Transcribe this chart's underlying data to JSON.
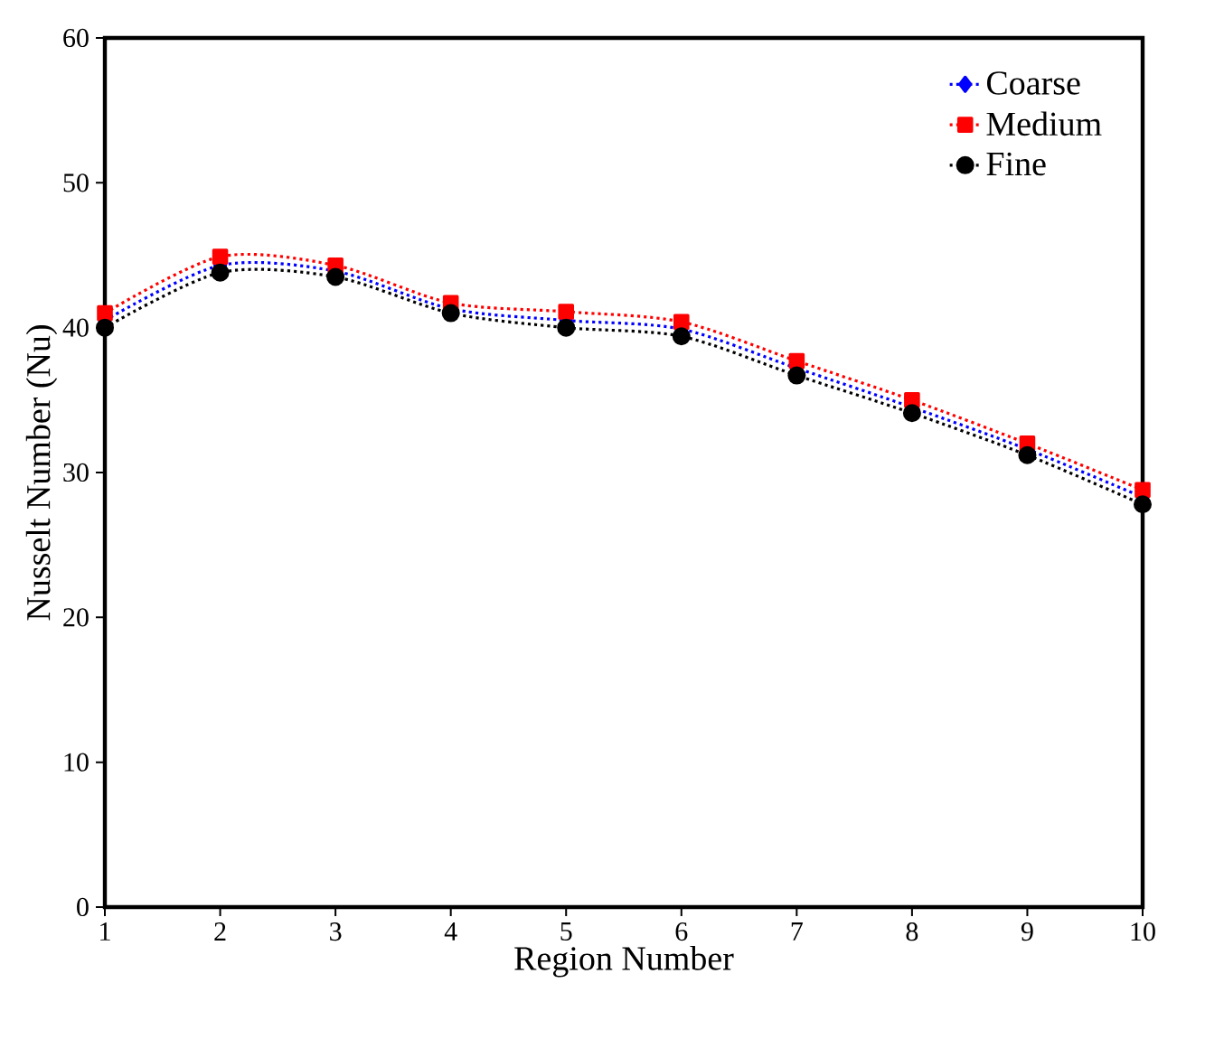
{
  "chart_data": {
    "type": "line",
    "xlabel": "Region Number",
    "ylabel": "Nusselt Number (Nu)",
    "x": [
      1,
      2,
      3,
      4,
      5,
      6,
      7,
      8,
      9,
      10
    ],
    "xlim": [
      1,
      10
    ],
    "xticks": [
      1,
      2,
      3,
      4,
      5,
      6,
      7,
      8,
      9,
      10
    ],
    "ylim": [
      0,
      60
    ],
    "yticks": [
      0,
      10,
      20,
      30,
      40,
      50,
      60
    ],
    "grid": false,
    "legend": "top right",
    "line_style": "dotted",
    "series": [
      {
        "name": "Coarse",
        "color": "#0000ff",
        "marker": "diamond",
        "values": [
          40.5,
          44.3,
          43.9,
          41.3,
          40.5,
          39.9,
          37.2,
          34.5,
          31.6,
          28.3
        ]
      },
      {
        "name": "Medium",
        "color": "#ff0000",
        "marker": "square",
        "values": [
          41.0,
          44.9,
          44.3,
          41.7,
          41.1,
          40.4,
          37.7,
          35.0,
          32.0,
          28.8
        ]
      },
      {
        "name": "Fine",
        "color": "#000000",
        "marker": "circle",
        "values": [
          40.0,
          43.8,
          43.5,
          41.0,
          40.0,
          39.4,
          36.7,
          34.1,
          31.2,
          27.8
        ]
      }
    ]
  }
}
